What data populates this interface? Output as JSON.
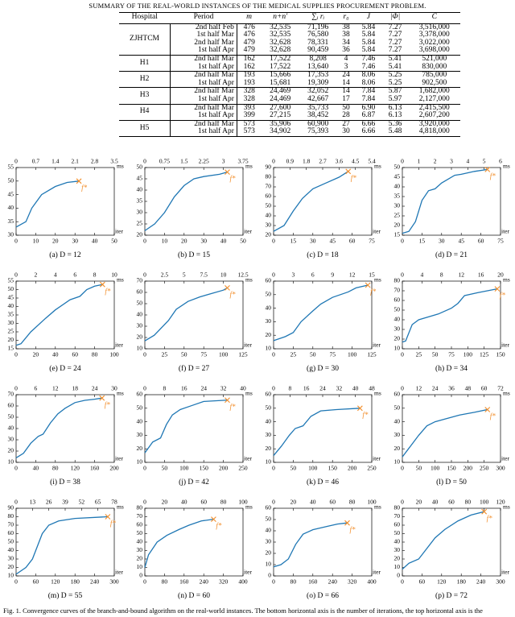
{
  "table": {
    "title": "SUMMARY OF THE REAL-WORLD INSTANCES OF THE MEDICAL SUPPLIES PROCUREMENT PROBLEM.",
    "header": [
      "Hospital",
      "Period",
      "m",
      "n+n′",
      "∑ᵢ rᵢ",
      "r₀",
      "J̄",
      "|Φ|",
      "C"
    ],
    "groups": [
      {
        "hospital": "ZJHTCM",
        "rows": [
          [
            "2nd half Feb",
            "476",
            "32,535",
            "71,196",
            "38",
            "5.84",
            "7.27",
            "3,516,000"
          ],
          [
            "1st half Mar",
            "476",
            "32,535",
            "76,580",
            "38",
            "5.84",
            "7.27",
            "3,378,000"
          ],
          [
            "2nd half Mar",
            "479",
            "32,628",
            "78,331",
            "34",
            "5.84",
            "7.27",
            "3,022,000"
          ],
          [
            "1st half Apr",
            "479",
            "32,628",
            "90,459",
            "36",
            "5.84",
            "7.27",
            "3,698,000"
          ]
        ]
      },
      {
        "hospital": "H1",
        "rows": [
          [
            "2nd half Mar",
            "162",
            "17,522",
            "8,208",
            "4",
            "7.46",
            "5.41",
            "521,000"
          ],
          [
            "1st half Apr",
            "162",
            "17,522",
            "13,640",
            "3",
            "7.46",
            "5.41",
            "830,000"
          ]
        ]
      },
      {
        "hospital": "H2",
        "rows": [
          [
            "2nd half Mar",
            "193",
            "15,666",
            "17,353",
            "24",
            "8.06",
            "5.25",
            "785,000"
          ],
          [
            "1st half Apr",
            "193",
            "15,681",
            "19,309",
            "14",
            "8.06",
            "5.25",
            "902,500"
          ]
        ]
      },
      {
        "hospital": "H3",
        "rows": [
          [
            "2nd half Mar",
            "328",
            "24,469",
            "32,052",
            "14",
            "7.84",
            "5.87",
            "1,682,000"
          ],
          [
            "1st half Apr",
            "328",
            "24,469",
            "42,667",
            "17",
            "7.84",
            "5.97",
            "2,127,000"
          ]
        ]
      },
      {
        "hospital": "H4",
        "rows": [
          [
            "2nd half Mar",
            "393",
            "27,600",
            "35,733",
            "50",
            "6.90",
            "6.13",
            "2,415,500"
          ],
          [
            "1st half Apr",
            "399",
            "27,215",
            "38,452",
            "28",
            "6.87",
            "6.13",
            "2,607,200"
          ]
        ]
      },
      {
        "hospital": "H5",
        "rows": [
          [
            "2nd half Mar",
            "573",
            "35,906",
            "60,900",
            "27",
            "6.66",
            "5.36",
            "3,920,000"
          ],
          [
            "1st half Apr",
            "573",
            "34,902",
            "75,393",
            "30",
            "6.66",
            "5.48",
            "4,818,000"
          ]
        ]
      }
    ]
  },
  "chart_data": [
    {
      "type": "line",
      "caption": "(a) D = 12",
      "xlabel": "iter",
      "x2label": "ms",
      "optimum_label": "f*",
      "color": "#1f77b4",
      "marker_color": "#f28e2b",
      "xlim": [
        0,
        50
      ],
      "xticks": [
        0,
        10,
        20,
        30,
        40,
        50
      ],
      "x2lim": [
        0,
        3.5
      ],
      "x2ticks": [
        0,
        0.7,
        1.4,
        2.1,
        2.8,
        3.5
      ],
      "ylim": [
        30,
        55
      ],
      "yticks": [
        30,
        35,
        40,
        45,
        50,
        55
      ],
      "x": [
        0,
        5,
        8,
        13,
        20,
        26,
        32
      ],
      "values": [
        33,
        35,
        40,
        45,
        48,
        49.5,
        50
      ]
    },
    {
      "type": "line",
      "caption": "(b) D = 15",
      "xlabel": "iter",
      "x2label": "ms",
      "optimum_label": "f*",
      "color": "#1f77b4",
      "marker_color": "#f28e2b",
      "xlim": [
        0,
        50
      ],
      "xticks": [
        0,
        10,
        20,
        30,
        40,
        50
      ],
      "x2lim": [
        0,
        3.75
      ],
      "x2ticks": [
        0,
        0.75,
        1.5,
        2.25,
        3,
        3.75
      ],
      "ylim": [
        20,
        50
      ],
      "yticks": [
        20,
        25,
        30,
        35,
        40,
        45,
        50
      ],
      "x": [
        0,
        5,
        10,
        15,
        20,
        25,
        30,
        38,
        42
      ],
      "values": [
        22,
        25,
        30,
        37,
        42,
        45,
        46,
        47,
        48
      ]
    },
    {
      "type": "line",
      "caption": "(c) D = 18",
      "xlabel": "iter",
      "x2label": "ms",
      "optimum_label": "f*",
      "color": "#1f77b4",
      "marker_color": "#f28e2b",
      "xlim": [
        0,
        75
      ],
      "xticks": [
        0,
        15,
        30,
        45,
        60,
        75
      ],
      "x2lim": [
        0,
        5.4
      ],
      "x2ticks": [
        0,
        0.9,
        1.8,
        2.7,
        3.6,
        4.5,
        5.4
      ],
      "ylim": [
        20,
        90
      ],
      "yticks": [
        20,
        30,
        40,
        50,
        60,
        70,
        80,
        90
      ],
      "x": [
        0,
        8,
        15,
        22,
        30,
        40,
        50,
        57
      ],
      "values": [
        24,
        30,
        45,
        58,
        68,
        74,
        80,
        86
      ]
    },
    {
      "type": "line",
      "caption": "(d) D = 21",
      "xlabel": "iter",
      "x2label": "ms",
      "optimum_label": "f*",
      "color": "#1f77b4",
      "marker_color": "#f28e2b",
      "xlim": [
        0,
        75
      ],
      "xticks": [
        0,
        15,
        30,
        45,
        60,
        75
      ],
      "x2lim": [
        0,
        6
      ],
      "x2ticks": [
        0,
        1,
        2,
        3,
        4,
        5,
        6
      ],
      "ylim": [
        15,
        50
      ],
      "yticks": [
        15,
        20,
        25,
        30,
        35,
        40,
        45,
        50
      ],
      "x": [
        0,
        5,
        10,
        15,
        20,
        25,
        30,
        40,
        45,
        55,
        65
      ],
      "values": [
        16,
        17,
        22,
        33,
        38,
        39,
        42,
        46,
        46.5,
        48,
        49
      ]
    },
    {
      "type": "line",
      "caption": "(e) D = 24",
      "xlabel": "iter",
      "x2label": "ms",
      "optimum_label": "f*",
      "color": "#1f77b4",
      "marker_color": "#f28e2b",
      "xlim": [
        0,
        100
      ],
      "xticks": [
        0,
        20,
        40,
        60,
        80,
        100
      ],
      "x2lim": [
        0,
        10
      ],
      "x2ticks": [
        0,
        2,
        4,
        6,
        8,
        10
      ],
      "ylim": [
        15,
        55
      ],
      "yticks": [
        15,
        20,
        25,
        30,
        35,
        40,
        45,
        50,
        55
      ],
      "x": [
        0,
        5,
        15,
        30,
        40,
        55,
        65,
        72,
        80,
        88
      ],
      "values": [
        17,
        18,
        25,
        33,
        38,
        44,
        46,
        50,
        52,
        53
      ]
    },
    {
      "type": "line",
      "caption": "(f) D = 27",
      "xlabel": "iter",
      "x2label": "ms",
      "optimum_label": "f*",
      "color": "#1f77b4",
      "marker_color": "#f28e2b",
      "xlim": [
        0,
        125
      ],
      "xticks": [
        0,
        25,
        50,
        75,
        100,
        125
      ],
      "x2lim": [
        0,
        12.5
      ],
      "x2ticks": [
        0,
        2.5,
        5,
        7.5,
        10,
        12.5
      ],
      "ylim": [
        10,
        70
      ],
      "yticks": [
        10,
        20,
        30,
        40,
        50,
        60,
        70
      ],
      "x": [
        0,
        12,
        30,
        40,
        55,
        70,
        85,
        100,
        105
      ],
      "values": [
        17,
        22,
        35,
        45,
        52,
        56,
        59,
        62,
        64
      ]
    },
    {
      "type": "line",
      "caption": "(g) D = 30",
      "xlabel": "iter",
      "x2label": "ms",
      "optimum_label": "f*",
      "color": "#1f77b4",
      "marker_color": "#f28e2b",
      "xlim": [
        0,
        125
      ],
      "xticks": [
        0,
        25,
        50,
        75,
        100,
        125
      ],
      "x2lim": [
        0,
        15
      ],
      "x2ticks": [
        0,
        3,
        6,
        9,
        12,
        15
      ],
      "ylim": [
        10,
        60
      ],
      "yticks": [
        10,
        20,
        30,
        40,
        50,
        60
      ],
      "x": [
        0,
        15,
        25,
        35,
        50,
        60,
        75,
        95,
        105,
        120
      ],
      "values": [
        16,
        19,
        22,
        30,
        38,
        43,
        48,
        52,
        55,
        57
      ]
    },
    {
      "type": "line",
      "caption": "(h) D = 34",
      "xlabel": "iter",
      "x2label": "ms",
      "optimum_label": "f*",
      "color": "#1f77b4",
      "marker_color": "#f28e2b",
      "xlim": [
        0,
        150
      ],
      "xticks": [
        0,
        25,
        50,
        75,
        100,
        125,
        150
      ],
      "x2lim": [
        0,
        20
      ],
      "x2ticks": [
        0,
        4,
        8,
        12,
        16,
        20
      ],
      "ylim": [
        10,
        80
      ],
      "yticks": [
        10,
        20,
        30,
        40,
        50,
        60,
        70,
        80
      ],
      "x": [
        0,
        5,
        15,
        25,
        40,
        55,
        75,
        85,
        95,
        115,
        145
      ],
      "values": [
        17,
        18,
        35,
        40,
        43,
        46,
        52,
        57,
        65,
        68,
        72
      ]
    },
    {
      "type": "line",
      "caption": "(i) D = 38",
      "xlabel": "iter",
      "x2label": "ms",
      "optimum_label": "f*",
      "color": "#1f77b4",
      "marker_color": "#f28e2b",
      "xlim": [
        0,
        200
      ],
      "xticks": [
        0,
        40,
        80,
        120,
        160,
        200
      ],
      "x2lim": [
        0,
        30
      ],
      "x2ticks": [
        0,
        6,
        12,
        18,
        24,
        30
      ],
      "ylim": [
        10,
        70
      ],
      "yticks": [
        10,
        20,
        30,
        40,
        50,
        60,
        70
      ],
      "x": [
        0,
        15,
        30,
        45,
        55,
        70,
        85,
        100,
        120,
        140,
        160,
        175
      ],
      "values": [
        14,
        18,
        27,
        33,
        35,
        45,
        53,
        58,
        63,
        65,
        66,
        67
      ]
    },
    {
      "type": "line",
      "caption": "(j) D = 42",
      "xlabel": "iter",
      "x2label": "ms",
      "optimum_label": "f*",
      "color": "#1f77b4",
      "marker_color": "#f28e2b",
      "xlim": [
        0,
        250
      ],
      "xticks": [
        0,
        50,
        100,
        150,
        200,
        250
      ],
      "x2lim": [
        0,
        40
      ],
      "x2ticks": [
        0,
        8,
        16,
        24,
        32,
        40
      ],
      "ylim": [
        10,
        60
      ],
      "yticks": [
        10,
        20,
        30,
        40,
        50,
        60
      ],
      "x": [
        0,
        20,
        40,
        55,
        70,
        90,
        120,
        150,
        210
      ],
      "values": [
        17,
        25,
        28,
        38,
        45,
        49,
        52,
        55,
        56
      ]
    },
    {
      "type": "line",
      "caption": "(k) D = 46",
      "xlabel": "iter",
      "x2label": "ms",
      "optimum_label": "f*",
      "color": "#1f77b4",
      "marker_color": "#f28e2b",
      "xlim": [
        0,
        250
      ],
      "xticks": [
        0,
        50,
        100,
        150,
        200,
        250
      ],
      "x2lim": [
        0,
        48
      ],
      "x2ticks": [
        0,
        8,
        16,
        24,
        32,
        40,
        48
      ],
      "ylim": [
        10,
        60
      ],
      "yticks": [
        10,
        20,
        30,
        40,
        50,
        60
      ],
      "x": [
        0,
        20,
        40,
        55,
        75,
        95,
        120,
        160,
        220
      ],
      "values": [
        15,
        22,
        30,
        35,
        37,
        44,
        48,
        49,
        50
      ]
    },
    {
      "type": "line",
      "caption": "(l) D = 50",
      "xlabel": "iter",
      "x2label": "ms",
      "optimum_label": "f*",
      "color": "#1f77b4",
      "marker_color": "#f28e2b",
      "xlim": [
        0,
        300
      ],
      "xticks": [
        0,
        50,
        100,
        150,
        200,
        250,
        300
      ],
      "x2lim": [
        0,
        72
      ],
      "x2ticks": [
        0,
        12,
        24,
        36,
        48,
        60,
        72
      ],
      "ylim": [
        10,
        60
      ],
      "yticks": [
        10,
        20,
        30,
        40,
        50,
        60
      ],
      "x": [
        0,
        25,
        50,
        75,
        100,
        130,
        175,
        220,
        260
      ],
      "values": [
        14,
        22,
        30,
        37,
        40,
        42,
        45,
        47,
        49
      ]
    },
    {
      "type": "line",
      "caption": "(m) D = 55",
      "xlabel": "iter",
      "x2label": "ms",
      "optimum_label": "f*",
      "color": "#1f77b4",
      "marker_color": "#f28e2b",
      "xlim": [
        0,
        300
      ],
      "xticks": [
        0,
        60,
        120,
        180,
        240,
        300
      ],
      "x2lim": [
        0,
        78
      ],
      "x2ticks": [
        0,
        13,
        26,
        39,
        52,
        65,
        78
      ],
      "ylim": [
        10,
        90
      ],
      "yticks": [
        10,
        20,
        30,
        40,
        50,
        60,
        70,
        80,
        90
      ],
      "x": [
        0,
        30,
        50,
        65,
        80,
        100,
        130,
        180,
        280
      ],
      "values": [
        12,
        20,
        30,
        45,
        60,
        70,
        75,
        78,
        80
      ]
    },
    {
      "type": "line",
      "caption": "(n) D = 60",
      "xlabel": "iter",
      "x2label": "ms",
      "optimum_label": "f*",
      "color": "#1f77b4",
      "marker_color": "#f28e2b",
      "xlim": [
        0,
        400
      ],
      "xticks": [
        0,
        80,
        160,
        240,
        320,
        400
      ],
      "x2lim": [
        0,
        100
      ],
      "x2ticks": [
        0,
        20,
        40,
        60,
        80,
        100
      ],
      "ylim": [
        0,
        80
      ],
      "yticks": [
        0,
        10,
        20,
        30,
        40,
        50,
        60,
        70,
        80
      ],
      "x": [
        0,
        15,
        50,
        90,
        140,
        180,
        230,
        280
      ],
      "values": [
        10,
        25,
        40,
        48,
        55,
        60,
        65,
        67
      ]
    },
    {
      "type": "line",
      "caption": "(o) D = 66",
      "xlabel": "iter",
      "x2label": "ms",
      "optimum_label": "f*",
      "color": "#1f77b4",
      "marker_color": "#f28e2b",
      "xlim": [
        0,
        400
      ],
      "xticks": [
        0,
        80,
        160,
        240,
        320,
        400
      ],
      "x2lim": [
        0,
        100
      ],
      "x2ticks": [
        0,
        20,
        40,
        60,
        80,
        100
      ],
      "ylim": [
        0,
        60
      ],
      "yticks": [
        0,
        10,
        20,
        30,
        40,
        50,
        60
      ],
      "x": [
        0,
        30,
        60,
        90,
        120,
        160,
        220,
        260,
        300
      ],
      "values": [
        8,
        10,
        15,
        28,
        37,
        41,
        44,
        46,
        47
      ]
    },
    {
      "type": "line",
      "caption": "(p) D = 72",
      "xlabel": "iter",
      "x2label": "ms",
      "optimum_label": "f*",
      "color": "#1f77b4",
      "marker_color": "#f28e2b",
      "xlim": [
        0,
        300
      ],
      "xticks": [
        0,
        60,
        120,
        180,
        240,
        300
      ],
      "x2lim": [
        0,
        120
      ],
      "x2ticks": [
        0,
        20,
        40,
        60,
        80,
        100,
        120
      ],
      "ylim": [
        0,
        80
      ],
      "yticks": [
        0,
        10,
        20,
        30,
        40,
        50,
        60,
        70,
        80
      ],
      "x": [
        0,
        20,
        50,
        70,
        100,
        130,
        170,
        210,
        250
      ],
      "values": [
        8,
        15,
        20,
        30,
        45,
        55,
        65,
        72,
        76
      ]
    }
  ],
  "figure_caption": "Fig. 1.   Convergence curves of the branch-and-bound algorithm on the real-world instances. The bottom horizontal axis is the number of iterations, the top horizontal axis is the"
}
